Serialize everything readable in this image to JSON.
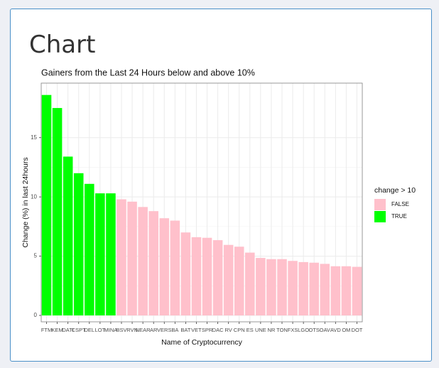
{
  "page": {
    "heading": "Chart"
  },
  "chart_data": {
    "type": "bar",
    "title": "Gainers from the Last 24 Hours below and above 10%",
    "x_label": "Name of Cryptocurrency",
    "y_label": "Change (%) in last 24hours",
    "legend_title": "change > 10",
    "categories": [
      "FTM",
      "KEM",
      "DATI",
      "CSPT",
      "DEL",
      "LOT",
      "MINA",
      "BSV",
      "RVN",
      "NEAR",
      "AR",
      "VERS",
      "BA",
      "BAT",
      "VET",
      "SPR",
      "DAC",
      "RV",
      "CPN",
      "ES",
      "UNE",
      "NR",
      "TON",
      "FXS",
      "LGO",
      "OTS",
      "OAV",
      "AVD",
      "OM",
      "DOT"
    ],
    "series": [
      {
        "name": "FALSE",
        "color": "#ffc0cb",
        "values": [
          null,
          null,
          null,
          null,
          null,
          null,
          null,
          9.8,
          9.6,
          9.15,
          8.8,
          8.2,
          8.0,
          7.0,
          6.6,
          6.55,
          6.35,
          5.95,
          5.8,
          5.3,
          4.85,
          4.75,
          4.75,
          4.6,
          4.5,
          4.45,
          4.35,
          4.15,
          4.15,
          4.1
        ]
      },
      {
        "name": "TRUE",
        "color": "#00ff00",
        "values": [
          18.6,
          17.5,
          13.4,
          12.0,
          11.1,
          10.3,
          10.3,
          null,
          null,
          null,
          null,
          null,
          null,
          null,
          null,
          null,
          null,
          null,
          null,
          null,
          null,
          null,
          null,
          null,
          null,
          null,
          null,
          null,
          null,
          null
        ]
      }
    ],
    "ylim": [
      -0.54,
      19.6
    ],
    "yticks": [
      0,
      5,
      10,
      15
    ],
    "grid": true,
    "legend": "right"
  }
}
